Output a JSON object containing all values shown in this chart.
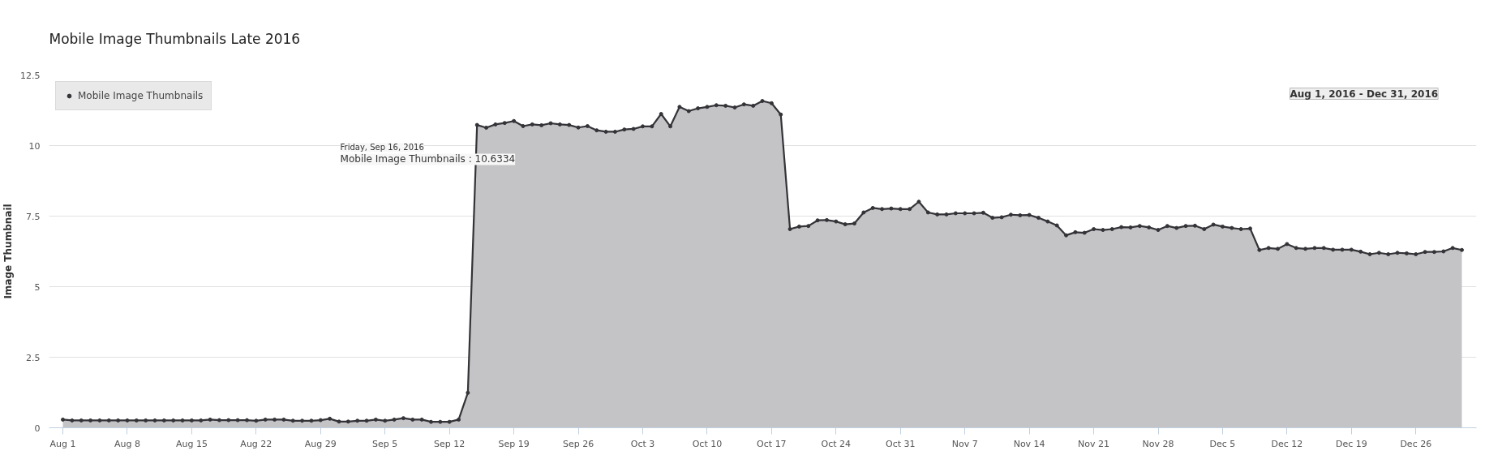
{
  "chart_data": {
    "type": "area",
    "title": "Mobile Image Thumbnails Late 2016",
    "ylabel": "Image Thumbnail",
    "x": [
      "2016-08-01",
      "2016-08-02",
      "2016-08-03",
      "2016-08-04",
      "2016-08-05",
      "2016-08-06",
      "2016-08-07",
      "2016-08-08",
      "2016-08-09",
      "2016-08-10",
      "2016-08-11",
      "2016-08-12",
      "2016-08-13",
      "2016-08-14",
      "2016-08-15",
      "2016-08-16",
      "2016-08-17",
      "2016-08-18",
      "2016-08-19",
      "2016-08-20",
      "2016-08-21",
      "2016-08-22",
      "2016-08-23",
      "2016-08-24",
      "2016-08-25",
      "2016-08-26",
      "2016-08-27",
      "2016-08-28",
      "2016-08-29",
      "2016-08-30",
      "2016-08-31",
      "2016-09-01",
      "2016-09-02",
      "2016-09-03",
      "2016-09-04",
      "2016-09-05",
      "2016-09-06",
      "2016-09-07",
      "2016-09-08",
      "2016-09-09",
      "2016-09-10",
      "2016-09-11",
      "2016-09-12",
      "2016-09-13",
      "2016-09-14",
      "2016-09-15",
      "2016-09-16",
      "2016-09-17",
      "2016-09-18",
      "2016-09-19",
      "2016-09-20",
      "2016-09-21",
      "2016-09-22",
      "2016-09-23",
      "2016-09-24",
      "2016-09-25",
      "2016-09-26",
      "2016-09-27",
      "2016-09-28",
      "2016-09-29",
      "2016-09-30",
      "2016-10-01",
      "2016-10-02",
      "2016-10-03",
      "2016-10-04",
      "2016-10-05",
      "2016-10-06",
      "2016-10-07",
      "2016-10-08",
      "2016-10-09",
      "2016-10-10",
      "2016-10-11",
      "2016-10-12",
      "2016-10-13",
      "2016-10-14",
      "2016-10-15",
      "2016-10-16",
      "2016-10-17",
      "2016-10-18",
      "2016-10-19",
      "2016-10-20",
      "2016-10-21",
      "2016-10-22",
      "2016-10-23",
      "2016-10-24",
      "2016-10-25",
      "2016-10-26",
      "2016-10-27",
      "2016-10-28",
      "2016-10-29",
      "2016-10-30",
      "2016-10-31",
      "2016-11-01",
      "2016-11-02",
      "2016-11-03",
      "2016-11-04",
      "2016-11-05",
      "2016-11-06",
      "2016-11-07",
      "2016-11-08",
      "2016-11-09",
      "2016-11-10",
      "2016-11-11",
      "2016-11-12",
      "2016-11-13",
      "2016-11-14",
      "2016-11-15",
      "2016-11-16",
      "2016-11-17",
      "2016-11-18",
      "2016-11-19",
      "2016-11-20",
      "2016-11-21",
      "2016-11-22",
      "2016-11-23",
      "2016-11-24",
      "2016-11-25",
      "2016-11-26",
      "2016-11-27",
      "2016-11-28",
      "2016-11-29",
      "2016-11-30",
      "2016-12-01",
      "2016-12-02",
      "2016-12-03",
      "2016-12-04",
      "2016-12-05",
      "2016-12-06",
      "2016-12-07",
      "2016-12-08",
      "2016-12-09",
      "2016-12-10",
      "2016-12-11",
      "2016-12-12",
      "2016-12-13",
      "2016-12-14",
      "2016-12-15",
      "2016-12-16",
      "2016-12-17",
      "2016-12-18",
      "2016-12-19",
      "2016-12-20",
      "2016-12-21",
      "2016-12-22",
      "2016-12-23",
      "2016-12-24",
      "2016-12-25",
      "2016-12-26",
      "2016-12-27",
      "2016-12-28",
      "2016-12-29",
      "2016-12-30",
      "2016-12-31"
    ],
    "series": [
      {
        "name": "Mobile Image Thumbnails",
        "color": "#333338",
        "values": [
          0.29,
          0.26,
          0.26,
          0.26,
          0.26,
          0.26,
          0.26,
          0.26,
          0.26,
          0.26,
          0.26,
          0.26,
          0.26,
          0.26,
          0.26,
          0.26,
          0.29,
          0.27,
          0.27,
          0.27,
          0.27,
          0.25,
          0.29,
          0.29,
          0.29,
          0.25,
          0.25,
          0.25,
          0.27,
          0.32,
          0.22,
          0.22,
          0.25,
          0.25,
          0.29,
          0.25,
          0.29,
          0.34,
          0.29,
          0.29,
          0.21,
          0.21,
          0.21,
          0.29,
          1.24,
          10.73,
          10.6334,
          10.75,
          10.8,
          10.87,
          10.69,
          10.75,
          10.72,
          10.79,
          10.75,
          10.73,
          10.64,
          10.69,
          10.54,
          10.49,
          10.49,
          10.57,
          10.59,
          10.68,
          10.68,
          11.12,
          10.68,
          11.37,
          11.22,
          11.32,
          11.37,
          11.43,
          11.41,
          11.35,
          11.46,
          11.41,
          11.58,
          11.5,
          11.1,
          7.04,
          7.13,
          7.15,
          7.35,
          7.36,
          7.31,
          7.21,
          7.24,
          7.63,
          7.79,
          7.75,
          7.77,
          7.75,
          7.75,
          8.01,
          7.63,
          7.56,
          7.56,
          7.6,
          7.6,
          7.6,
          7.62,
          7.44,
          7.46,
          7.55,
          7.53,
          7.54,
          7.44,
          7.31,
          7.17,
          6.82,
          6.93,
          6.91,
          7.04,
          7.01,
          7.04,
          7.11,
          7.1,
          7.15,
          7.1,
          7.01,
          7.15,
          7.08,
          7.15,
          7.16,
          7.04,
          7.2,
          7.13,
          7.08,
          7.04,
          7.06,
          6.3,
          6.37,
          6.34,
          6.51,
          6.37,
          6.34,
          6.37,
          6.37,
          6.31,
          6.31,
          6.31,
          6.24,
          6.15,
          6.2,
          6.15,
          6.2,
          6.18,
          6.15,
          6.23,
          6.23,
          6.25,
          6.37,
          6.3
        ]
      }
    ],
    "xlim": [
      "2016-07-30T12:00",
      "2017-01-01T14:00"
    ],
    "xticks": [
      {
        "value": "2016-08-01",
        "label": "Aug 1"
      },
      {
        "value": "2016-08-08",
        "label": "Aug 8"
      },
      {
        "value": "2016-08-15",
        "label": "Aug 15"
      },
      {
        "value": "2016-08-22",
        "label": "Aug 22"
      },
      {
        "value": "2016-08-29",
        "label": "Aug 29"
      },
      {
        "value": "2016-09-05",
        "label": "Sep 5"
      },
      {
        "value": "2016-09-12",
        "label": "Sep 12"
      },
      {
        "value": "2016-09-19",
        "label": "Sep 19"
      },
      {
        "value": "2016-09-26",
        "label": "Sep 26"
      },
      {
        "value": "2016-10-03",
        "label": "Oct 3"
      },
      {
        "value": "2016-10-10",
        "label": "Oct 10"
      },
      {
        "value": "2016-10-17",
        "label": "Oct 17"
      },
      {
        "value": "2016-10-24",
        "label": "Oct 24"
      },
      {
        "value": "2016-10-31",
        "label": "Oct 31"
      },
      {
        "value": "2016-11-07",
        "label": "Nov 7"
      },
      {
        "value": "2016-11-14",
        "label": "Nov 14"
      },
      {
        "value": "2016-11-21",
        "label": "Nov 21"
      },
      {
        "value": "2016-11-28",
        "label": "Nov 28"
      },
      {
        "value": "2016-12-05",
        "label": "Dec 5"
      },
      {
        "value": "2016-12-12",
        "label": "Dec 12"
      },
      {
        "value": "2016-12-19",
        "label": "Dec 19"
      },
      {
        "value": "2016-12-26",
        "label": "Dec 26"
      }
    ],
    "ylim": [
      0,
      12.5
    ],
    "yticks": [
      0,
      2.5,
      5,
      7.5,
      10,
      12.5
    ],
    "grid": "y",
    "legend": "top left",
    "marker": "circle",
    "line_style": "solid",
    "annotations": [
      "Aug 1, 2016 - Dec 31, 2016",
      {
        "text": "Friday, Sep 16, 2016\nMobile Image Thumbnails : 10.6334",
        "x": "2016-09-16",
        "y": 10.6334
      }
    ]
  }
}
